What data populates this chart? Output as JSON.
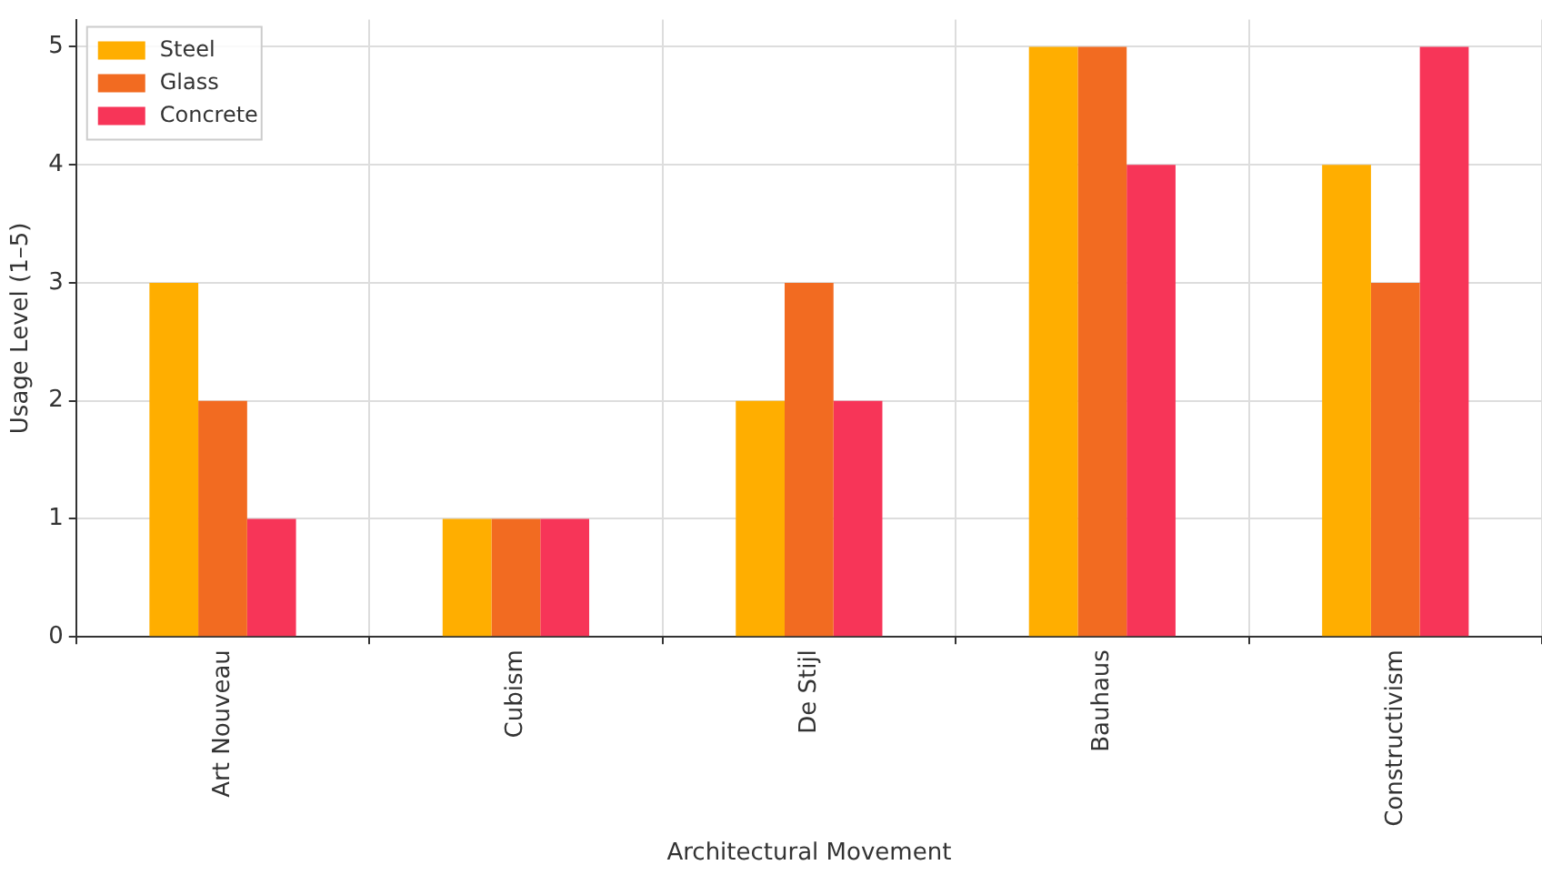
{
  "chart_data": {
    "type": "bar",
    "xlabel": "Architectural Movement",
    "ylabel": "Usage Level (1–5)",
    "categories": [
      "Art Nouveau",
      "Cubism",
      "De Stijl",
      "Bauhaus",
      "Constructivism"
    ],
    "series": [
      {
        "name": "Steel",
        "color": "#ffae00",
        "values": [
          3,
          1,
          2,
          5,
          4
        ]
      },
      {
        "name": "Glass",
        "color": "#f26b21",
        "values": [
          2,
          1,
          3,
          5,
          3
        ]
      },
      {
        "name": "Concrete",
        "color": "#f73558",
        "values": [
          1,
          1,
          2,
          4,
          5
        ]
      }
    ],
    "ylim": [
      0,
      5.23
    ],
    "yticks": [
      0,
      1,
      2,
      3,
      4,
      5
    ],
    "grid": true,
    "legend": "top left"
  }
}
